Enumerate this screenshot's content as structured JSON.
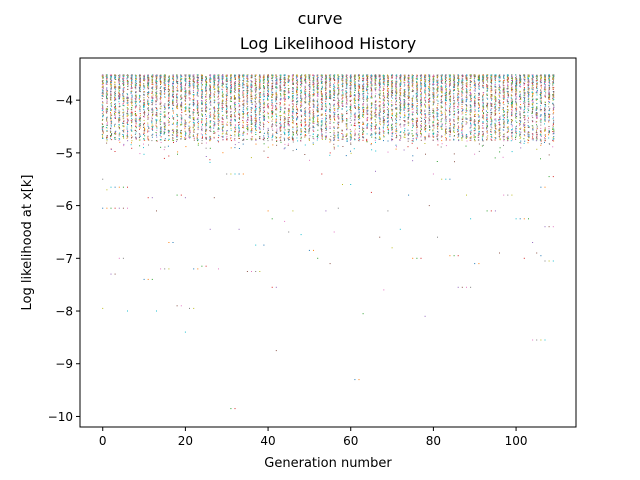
{
  "figure": {
    "suptitle": "curve"
  },
  "chart_data": {
    "type": "scatter",
    "title": "Log Likelihood History",
    "xlabel": "Generation number",
    "ylabel": "Log likelihood at x[k]",
    "xlim": [
      -5.5,
      114.5
    ],
    "ylim": [
      -10.2,
      -3.2
    ],
    "xticks": [
      0,
      20,
      40,
      60,
      80,
      100
    ],
    "yticks": [
      -4,
      -5,
      -6,
      -7,
      -8,
      -9,
      -10
    ],
    "grid": false,
    "legend": "none",
    "series_count": 10,
    "colors": [
      "#1f77b4",
      "#ff7f0e",
      "#2ca02c",
      "#d62728",
      "#9467bd",
      "#8c564b",
      "#e377c2",
      "#7f7f7f",
      "#bcbd22",
      "#17becf"
    ],
    "marker": "pixel",
    "generations": [
      0,
      109
    ],
    "band_median_range": [
      -3.55,
      -4.6
    ],
    "sparse_points": [
      {
        "x": 0,
        "y": -6.05
      },
      {
        "x": 1,
        "y": -6.05
      },
      {
        "x": 2,
        "y": -6.05
      },
      {
        "x": 3,
        "y": -6.05
      },
      {
        "x": 4,
        "y": -6.05
      },
      {
        "x": 5,
        "y": -6.05
      },
      {
        "x": 6,
        "y": -6.05
      },
      {
        "x": 0,
        "y": -5.5
      },
      {
        "x": 1,
        "y": -5.7
      },
      {
        "x": 2,
        "y": -5.65
      },
      {
        "x": 3,
        "y": -5.65
      },
      {
        "x": 4,
        "y": -5.65
      },
      {
        "x": 5,
        "y": -5.65
      },
      {
        "x": 6,
        "y": -5.65
      },
      {
        "x": 2,
        "y": -7.3
      },
      {
        "x": 3,
        "y": -7.3
      },
      {
        "x": 4,
        "y": -7.0
      },
      {
        "x": 5,
        "y": -7.0
      },
      {
        "x": 0,
        "y": -7.95
      },
      {
        "x": 6,
        "y": -8.0
      },
      {
        "x": 10,
        "y": -7.4
      },
      {
        "x": 11,
        "y": -7.4
      },
      {
        "x": 12,
        "y": -7.4
      },
      {
        "x": 11,
        "y": -5.85
      },
      {
        "x": 12,
        "y": -5.85
      },
      {
        "x": 13,
        "y": -6.1
      },
      {
        "x": 14,
        "y": -7.2
      },
      {
        "x": 15,
        "y": -7.2
      },
      {
        "x": 16,
        "y": -7.2
      },
      {
        "x": 13,
        "y": -8.0
      },
      {
        "x": 17,
        "y": -6.7
      },
      {
        "x": 16,
        "y": -6.7
      },
      {
        "x": 18,
        "y": -5.8
      },
      {
        "x": 19,
        "y": -5.8
      },
      {
        "x": 20,
        "y": -5.85
      },
      {
        "x": 18,
        "y": -7.9
      },
      {
        "x": 19,
        "y": -7.9
      },
      {
        "x": 21,
        "y": -7.95
      },
      {
        "x": 22,
        "y": -7.95
      },
      {
        "x": 20,
        "y": -8.4
      },
      {
        "x": 22,
        "y": -7.2
      },
      {
        "x": 23,
        "y": -7.2
      },
      {
        "x": 24,
        "y": -7.15
      },
      {
        "x": 25,
        "y": -7.15
      },
      {
        "x": 26,
        "y": -6.45
      },
      {
        "x": 27,
        "y": -5.85
      },
      {
        "x": 28,
        "y": -7.2
      },
      {
        "x": 30,
        "y": -5.4
      },
      {
        "x": 31,
        "y": -5.4
      },
      {
        "x": 32,
        "y": -5.4
      },
      {
        "x": 33,
        "y": -5.4
      },
      {
        "x": 34,
        "y": -5.4
      },
      {
        "x": 31,
        "y": -9.85
      },
      {
        "x": 32,
        "y": -9.85
      },
      {
        "x": 33,
        "y": -6.45
      },
      {
        "x": 35,
        "y": -7.25
      },
      {
        "x": 36,
        "y": -7.25
      },
      {
        "x": 37,
        "y": -7.25
      },
      {
        "x": 38,
        "y": -7.25
      },
      {
        "x": 37,
        "y": -6.75
      },
      {
        "x": 39,
        "y": -6.75
      },
      {
        "x": 40,
        "y": -6.1
      },
      {
        "x": 41,
        "y": -6.25
      },
      {
        "x": 41,
        "y": -7.55
      },
      {
        "x": 42,
        "y": -7.55
      },
      {
        "x": 42,
        "y": -8.75
      },
      {
        "x": 44,
        "y": -6.3
      },
      {
        "x": 45,
        "y": -6.5
      },
      {
        "x": 46,
        "y": -6.1
      },
      {
        "x": 48,
        "y": -6.55
      },
      {
        "x": 50,
        "y": -6.85
      },
      {
        "x": 51,
        "y": -6.85
      },
      {
        "x": 52,
        "y": -7.0
      },
      {
        "x": 53,
        "y": -5.4
      },
      {
        "x": 54,
        "y": -6.1
      },
      {
        "x": 55,
        "y": -7.1
      },
      {
        "x": 56,
        "y": -6.5
      },
      {
        "x": 57,
        "y": -6.05
      },
      {
        "x": 58,
        "y": -5.6
      },
      {
        "x": 60,
        "y": -5.6
      },
      {
        "x": 61,
        "y": -9.3
      },
      {
        "x": 62,
        "y": -9.3
      },
      {
        "x": 63,
        "y": -8.05
      },
      {
        "x": 65,
        "y": -5.75
      },
      {
        "x": 66,
        "y": -5.35
      },
      {
        "x": 67,
        "y": -6.6
      },
      {
        "x": 68,
        "y": -7.6
      },
      {
        "x": 69,
        "y": -6.1
      },
      {
        "x": 70,
        "y": -6.8
      },
      {
        "x": 72,
        "y": -6.45
      },
      {
        "x": 74,
        "y": -5.8
      },
      {
        "x": 75,
        "y": -7.0
      },
      {
        "x": 76,
        "y": -7.0
      },
      {
        "x": 77,
        "y": -7.0
      },
      {
        "x": 78,
        "y": -8.1
      },
      {
        "x": 79,
        "y": -6.0
      },
      {
        "x": 80,
        "y": -5.4
      },
      {
        "x": 81,
        "y": -6.6
      },
      {
        "x": 82,
        "y": -5.5
      },
      {
        "x": 83,
        "y": -5.5
      },
      {
        "x": 84,
        "y": -5.5
      },
      {
        "x": 84,
        "y": -6.95
      },
      {
        "x": 85,
        "y": -6.95
      },
      {
        "x": 86,
        "y": -6.95
      },
      {
        "x": 86,
        "y": -7.55
      },
      {
        "x": 87,
        "y": -7.55
      },
      {
        "x": 88,
        "y": -7.55
      },
      {
        "x": 89,
        "y": -7.55
      },
      {
        "x": 88,
        "y": -5.8
      },
      {
        "x": 89,
        "y": -6.25
      },
      {
        "x": 90,
        "y": -7.1
      },
      {
        "x": 91,
        "y": -7.1
      },
      {
        "x": 93,
        "y": -6.1
      },
      {
        "x": 94,
        "y": -6.1
      },
      {
        "x": 95,
        "y": -6.1
      },
      {
        "x": 96,
        "y": -6.9
      },
      {
        "x": 97,
        "y": -5.8
      },
      {
        "x": 98,
        "y": -5.8
      },
      {
        "x": 99,
        "y": -5.8
      },
      {
        "x": 100,
        "y": -6.25
      },
      {
        "x": 101,
        "y": -6.25
      },
      {
        "x": 102,
        "y": -6.25
      },
      {
        "x": 103,
        "y": -6.25
      },
      {
        "x": 102,
        "y": -7.0
      },
      {
        "x": 104,
        "y": -6.7
      },
      {
        "x": 105,
        "y": -6.9
      },
      {
        "x": 104,
        "y": -8.55
      },
      {
        "x": 105,
        "y": -8.55
      },
      {
        "x": 106,
        "y": -8.55
      },
      {
        "x": 107,
        "y": -8.55
      },
      {
        "x": 106,
        "y": -5.65
      },
      {
        "x": 107,
        "y": -5.65
      },
      {
        "x": 108,
        "y": -5.45
      },
      {
        "x": 109,
        "y": -5.45
      },
      {
        "x": 107,
        "y": -6.4
      },
      {
        "x": 108,
        "y": -6.4
      },
      {
        "x": 109,
        "y": -6.4
      },
      {
        "x": 107,
        "y": -7.05
      },
      {
        "x": 108,
        "y": -7.05
      },
      {
        "x": 109,
        "y": -7.05
      },
      {
        "x": 106,
        "y": -6.95
      }
    ]
  }
}
